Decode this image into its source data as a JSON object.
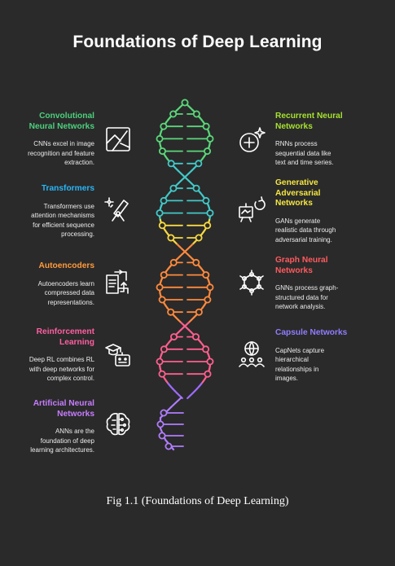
{
  "title": "Foundations of Deep Learning",
  "caption": "Fig 1.1 (Foundations of Deep Learning)",
  "left_items": [
    {
      "title_lines": [
        "Convolutional",
        "Neural Networks"
      ],
      "desc_lines": [
        "CNNs excel in image",
        "recognition and feature",
        "extraction."
      ],
      "color": "#4cd07d",
      "icon": "image-frame-icon"
    },
    {
      "title_lines": [
        "Transformers"
      ],
      "desc_lines": [
        "Transformers use",
        "attention mechanisms",
        "for efficient sequence",
        "processing."
      ],
      "color": "#29b6f6",
      "icon": "telescope-sparkle-icon"
    },
    {
      "title_lines": [
        "Autoencoders"
      ],
      "desc_lines": [
        "Autoencoders learn",
        "compressed data",
        "representations."
      ],
      "color": "#ff9a3c",
      "icon": "document-arrows-icon"
    },
    {
      "title_lines": [
        "Reinforcement",
        "Learning"
      ],
      "desc_lines": [
        "Deep RL combines RL",
        "with deep networks for",
        "complex control."
      ],
      "color": "#ff5fa2",
      "icon": "graduation-robot-icon"
    },
    {
      "title_lines": [
        "Artificial Neural",
        "Networks"
      ],
      "desc_lines": [
        "ANNs are the",
        "foundation of deep",
        "learning architectures."
      ],
      "color": "#c77dff",
      "icon": "brain-circuit-icon"
    }
  ],
  "right_items": [
    {
      "title_lines": [
        "Recurrent Neural",
        "Networks"
      ],
      "desc_lines": [
        "RNNs process",
        "sequential data like",
        "text and time series."
      ],
      "color": "#a6e22e",
      "icon": "plus-sparkle-icon"
    },
    {
      "title_lines": [
        "Generative",
        "Adversarial",
        "Networks"
      ],
      "desc_lines": [
        "GANs generate",
        "realistic data through",
        "adversarial training."
      ],
      "color": "#f5e642",
      "icon": "easel-refresh-icon"
    },
    {
      "title_lines": [
        "Graph Neural",
        "Networks"
      ],
      "desc_lines": [
        "GNNs process graph-",
        "structured data for",
        "network analysis."
      ],
      "color": "#ff5a5f",
      "icon": "graph-network-icon"
    },
    {
      "title_lines": [
        "Capsule Networks"
      ],
      "desc_lines": [
        "CapNets capture",
        "hierarchical",
        "relationships in",
        "images."
      ],
      "color": "#8f7dff",
      "icon": "globe-people-icon"
    }
  ],
  "helix_colors": [
    "#5ad77a",
    "#42c8c8",
    "#f7d942",
    "#ff8a3d",
    "#ff5f8f",
    "#9d6bff",
    "#b07dff"
  ]
}
